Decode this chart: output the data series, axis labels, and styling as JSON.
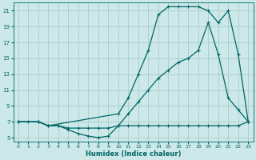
{
  "xlabel": "Humidex (Indice chaleur)",
  "bg_color": "#cce8e8",
  "grid_color": "#aacccc",
  "line_color": "#006666",
  "xlim": [
    -0.5,
    23.5
  ],
  "ylim": [
    4.5,
    22
  ],
  "xticks": [
    0,
    1,
    2,
    3,
    4,
    5,
    6,
    7,
    8,
    9,
    10,
    11,
    12,
    13,
    14,
    15,
    16,
    17,
    18,
    19,
    20,
    21,
    22,
    23
  ],
  "yticks": [
    5,
    7,
    9,
    11,
    13,
    15,
    17,
    19,
    21
  ],
  "line1_x": [
    0,
    1,
    2,
    3,
    4,
    5,
    6,
    7,
    8,
    9,
    10,
    11,
    12,
    13,
    14,
    15,
    16,
    17,
    18,
    19,
    20,
    21,
    22,
    23
  ],
  "line1_y": [
    7,
    7,
    7,
    6.5,
    6.5,
    6.2,
    6.2,
    6.2,
    6.2,
    6.2,
    6.5,
    6.5,
    6.5,
    6.5,
    6.5,
    6.5,
    6.5,
    6.5,
    6.5,
    6.5,
    6.5,
    6.5,
    6.5,
    7
  ],
  "line2_x": [
    0,
    2,
    3,
    4,
    5,
    6,
    7,
    8,
    9,
    10,
    11,
    12,
    13,
    14,
    15,
    16,
    17,
    18,
    19,
    20,
    21,
    22,
    23
  ],
  "line2_y": [
    7,
    7,
    6.5,
    6.5,
    6,
    5.5,
    5.2,
    5,
    5.2,
    6.5,
    8,
    9.5,
    11,
    12.5,
    13.5,
    14.5,
    15,
    16,
    19.5,
    15.5,
    10,
    8.5,
    7
  ],
  "line3_x": [
    0,
    2,
    3,
    10,
    11,
    12,
    13,
    14,
    15,
    16,
    17,
    18,
    19,
    20,
    21,
    22,
    23
  ],
  "line3_y": [
    7,
    7,
    6.5,
    8,
    10,
    13,
    16,
    20.5,
    21.5,
    21.5,
    21.5,
    21.5,
    21,
    19.5,
    21,
    15.5,
    7
  ]
}
